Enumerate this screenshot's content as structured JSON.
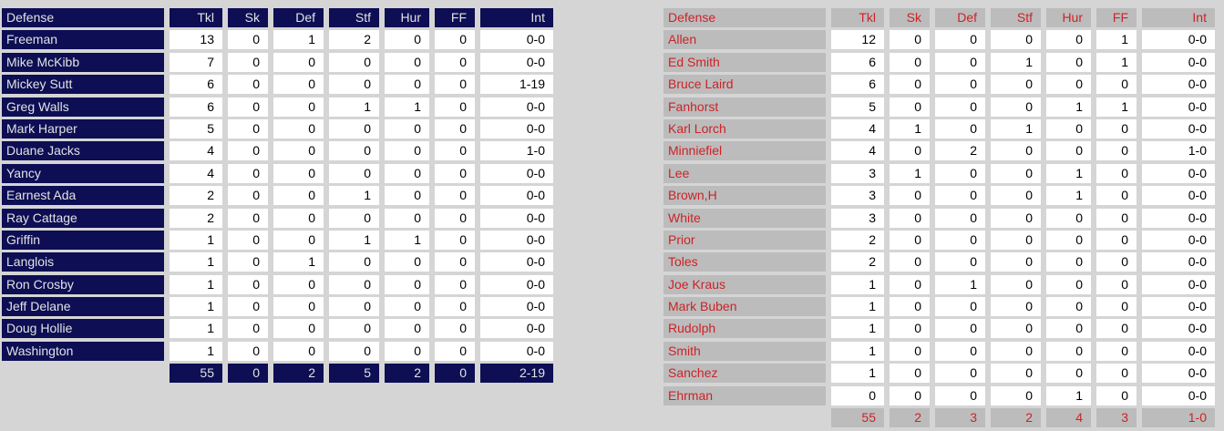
{
  "colors": {
    "page_bg": "#d5d5d5",
    "left_accent_bg": "#0d0e54",
    "left_accent_text": "#e2e2e2",
    "right_accent_bg": "#bcbcbc",
    "right_accent_text": "#cc2327",
    "data_cell_bg": "#ffffff",
    "data_cell_text": "#000000"
  },
  "columns": [
    "Defense",
    "Tkl",
    "Sk",
    "Def",
    "Stf",
    "Hur",
    "FF",
    "Int"
  ],
  "left_table": {
    "rows": [
      [
        "Freeman",
        "13",
        "0",
        "1",
        "2",
        "0",
        "0",
        "0-0"
      ],
      [
        "Mike McKibb",
        "7",
        "0",
        "0",
        "0",
        "0",
        "0",
        "0-0"
      ],
      [
        "Mickey Sutt",
        "6",
        "0",
        "0",
        "0",
        "0",
        "0",
        "1-19"
      ],
      [
        "Greg Walls",
        "6",
        "0",
        "0",
        "1",
        "1",
        "0",
        "0-0"
      ],
      [
        "Mark Harper",
        "5",
        "0",
        "0",
        "0",
        "0",
        "0",
        "0-0"
      ],
      [
        "Duane Jacks",
        "4",
        "0",
        "0",
        "0",
        "0",
        "0",
        "1-0"
      ],
      [
        "Yancy",
        "4",
        "0",
        "0",
        "0",
        "0",
        "0",
        "0-0"
      ],
      [
        "Earnest Ada",
        "2",
        "0",
        "0",
        "1",
        "0",
        "0",
        "0-0"
      ],
      [
        "Ray Cattage",
        "2",
        "0",
        "0",
        "0",
        "0",
        "0",
        "0-0"
      ],
      [
        "Griffin",
        "1",
        "0",
        "0",
        "1",
        "1",
        "0",
        "0-0"
      ],
      [
        "Langlois",
        "1",
        "0",
        "1",
        "0",
        "0",
        "0",
        "0-0"
      ],
      [
        "Ron Crosby",
        "1",
        "0",
        "0",
        "0",
        "0",
        "0",
        "0-0"
      ],
      [
        "Jeff Delane",
        "1",
        "0",
        "0",
        "0",
        "0",
        "0",
        "0-0"
      ],
      [
        "Doug Hollie",
        "1",
        "0",
        "0",
        "0",
        "0",
        "0",
        "0-0"
      ],
      [
        "Washington",
        "1",
        "0",
        "0",
        "0",
        "0",
        "0",
        "0-0"
      ]
    ],
    "totals": [
      "55",
      "0",
      "2",
      "5",
      "2",
      "0",
      "2-19"
    ]
  },
  "right_table": {
    "rows": [
      [
        "Allen",
        "12",
        "0",
        "0",
        "0",
        "0",
        "1",
        "0-0"
      ],
      [
        "Ed Smith",
        "6",
        "0",
        "0",
        "1",
        "0",
        "1",
        "0-0"
      ],
      [
        "Bruce Laird",
        "6",
        "0",
        "0",
        "0",
        "0",
        "0",
        "0-0"
      ],
      [
        "Fanhorst",
        "5",
        "0",
        "0",
        "0",
        "1",
        "1",
        "0-0"
      ],
      [
        "Karl Lorch",
        "4",
        "1",
        "0",
        "1",
        "0",
        "0",
        "0-0"
      ],
      [
        "Minniefiel",
        "4",
        "0",
        "2",
        "0",
        "0",
        "0",
        "1-0"
      ],
      [
        "Lee",
        "3",
        "1",
        "0",
        "0",
        "1",
        "0",
        "0-0"
      ],
      [
        "Brown,H",
        "3",
        "0",
        "0",
        "0",
        "1",
        "0",
        "0-0"
      ],
      [
        "White",
        "3",
        "0",
        "0",
        "0",
        "0",
        "0",
        "0-0"
      ],
      [
        "Prior",
        "2",
        "0",
        "0",
        "0",
        "0",
        "0",
        "0-0"
      ],
      [
        "Toles",
        "2",
        "0",
        "0",
        "0",
        "0",
        "0",
        "0-0"
      ],
      [
        "Joe Kraus",
        "1",
        "0",
        "1",
        "0",
        "0",
        "0",
        "0-0"
      ],
      [
        "Mark Buben",
        "1",
        "0",
        "0",
        "0",
        "0",
        "0",
        "0-0"
      ],
      [
        "Rudolph",
        "1",
        "0",
        "0",
        "0",
        "0",
        "0",
        "0-0"
      ],
      [
        "Smith",
        "1",
        "0",
        "0",
        "0",
        "0",
        "0",
        "0-0"
      ],
      [
        "Sanchez",
        "1",
        "0",
        "0",
        "0",
        "0",
        "0",
        "0-0"
      ],
      [
        "Ehrman",
        "0",
        "0",
        "0",
        "0",
        "1",
        "0",
        "0-0"
      ]
    ],
    "totals": [
      "55",
      "2",
      "3",
      "2",
      "4",
      "3",
      "1-0"
    ]
  }
}
